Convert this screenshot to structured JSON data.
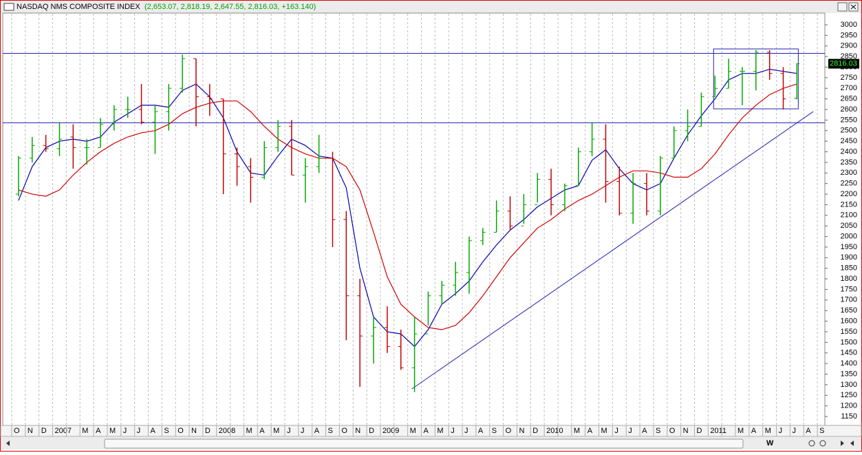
{
  "chart_data": {
    "type": "ohlc",
    "title": "NASDAQ NMS COMPOSITE INDEX",
    "subtitle": "(2,653.07, 2,818.19, 2,647.55, 2,816.03, +163.140)",
    "categories": [
      "O",
      "N",
      "D",
      "2007",
      null,
      "M",
      "A",
      "M",
      "J",
      "J",
      "A",
      "S",
      "O",
      "N",
      "D",
      "2008",
      null,
      "M",
      "A",
      "M",
      "J",
      "J",
      "A",
      "S",
      "O",
      "N",
      "D",
      "2009",
      null,
      "M",
      "A",
      "M",
      "J",
      "J",
      "A",
      "S",
      "O",
      "N",
      "D",
      "2010",
      null,
      "M",
      "A",
      "M",
      "J",
      "J",
      "A",
      "S",
      "O",
      "N",
      "D",
      "2011",
      null,
      "M",
      "A",
      "M",
      "J",
      "J",
      "A",
      "S"
    ],
    "ohlc": {
      "open": [
        2200,
        2370,
        2430,
        2415,
        2470,
        2420,
        2420,
        2530,
        2600,
        2600,
        2540,
        2590,
        2700,
        2840,
        2660,
        2650,
        2390,
        2330,
        2280,
        2420,
        2520,
        2290,
        2330,
        2370,
        2080,
        1720,
        1530,
        1570,
        1480,
        1380,
        1540,
        1720,
        1770,
        1830,
        1980,
        2020,
        2120,
        2050,
        2150,
        2270,
        2150,
        2240,
        2400,
        2460,
        2260,
        2110,
        2250,
        2120,
        2370,
        2500,
        2520,
        2660,
        2700,
        2780,
        2780,
        2870,
        2770,
        2653.07,
        null,
        null
      ],
      "high": [
        2380,
        2470,
        2480,
        2540,
        2530,
        2460,
        2560,
        2620,
        2660,
        2720,
        2620,
        2720,
        2860,
        2840,
        2720,
        2650,
        2420,
        2370,
        2450,
        2550,
        2550,
        2370,
        2480,
        2400,
        2120,
        1800,
        1620,
        1670,
        1560,
        1620,
        1740,
        1790,
        1880,
        2000,
        2040,
        2170,
        2190,
        2200,
        2300,
        2320,
        2250,
        2420,
        2540,
        2530,
        2330,
        2300,
        2300,
        2380,
        2520,
        2600,
        2680,
        2760,
        2840,
        2800,
        2880,
        2880,
        2800,
        2818.19,
        null,
        null
      ],
      "low": [
        2190,
        2350,
        2400,
        2380,
        2320,
        2340,
        2420,
        2500,
        2560,
        2530,
        2390,
        2500,
        2680,
        2520,
        2570,
        2200,
        2240,
        2160,
        2270,
        2400,
        2290,
        2160,
        2300,
        1950,
        1510,
        1290,
        1400,
        1450,
        1370,
        1265,
        1580,
        1680,
        1720,
        1730,
        1960,
        2020,
        2030,
        2060,
        2160,
        2100,
        2120,
        2240,
        2380,
        2160,
        2100,
        2060,
        2100,
        2100,
        2370,
        2450,
        2520,
        2660,
        2700,
        2620,
        2690,
        2740,
        2600,
        2647.55,
        null,
        null
      ],
      "close": [
        2370,
        2430,
        2415,
        2460,
        2420,
        2420,
        2530,
        2600,
        2600,
        2540,
        2590,
        2700,
        2840,
        2660,
        2650,
        2390,
        2330,
        2280,
        2420,
        2520,
        2290,
        2330,
        2370,
        2080,
        1720,
        1530,
        1570,
        1480,
        1380,
        1540,
        1720,
        1770,
        1830,
        1980,
        2020,
        2120,
        2050,
        2150,
        2270,
        2150,
        2240,
        2400,
        2460,
        2260,
        2110,
        2250,
        2120,
        2370,
        2500,
        2520,
        2660,
        2700,
        2780,
        2780,
        2870,
        2770,
        2650,
        2816.03,
        null,
        null
      ],
      "up_color": "#00a800",
      "down_color": "#c00000"
    },
    "series": [
      {
        "color": "#0000b0",
        "values": [
          2170,
          2330,
          2420,
          2450,
          2460,
          2450,
          2470,
          2540,
          2580,
          2620,
          2620,
          2610,
          2690,
          2720,
          2660,
          2560,
          2400,
          2300,
          2290,
          2380,
          2460,
          2430,
          2380,
          2370,
          2230,
          1850,
          1620,
          1550,
          1540,
          1480,
          1560,
          1680,
          1730,
          1790,
          1880,
          1960,
          2030,
          2080,
          2140,
          2180,
          2220,
          2240,
          2360,
          2410,
          2320,
          2250,
          2220,
          2250,
          2370,
          2480,
          2570,
          2650,
          2740,
          2770,
          2770,
          2790,
          2780,
          2770,
          null,
          null
        ]
      },
      {
        "color": "#d00000",
        "values": [
          2220,
          2200,
          2190,
          2220,
          2290,
          2350,
          2400,
          2440,
          2470,
          2490,
          2500,
          2530,
          2580,
          2610,
          2630,
          2640,
          2640,
          2590,
          2520,
          2460,
          2420,
          2390,
          2370,
          2370,
          2330,
          2220,
          2020,
          1810,
          1680,
          1620,
          1570,
          1560,
          1580,
          1640,
          1720,
          1810,
          1900,
          1970,
          2040,
          2080,
          2130,
          2170,
          2200,
          2240,
          2280,
          2310,
          2310,
          2300,
          2280,
          2280,
          2320,
          2390,
          2480,
          2560,
          2620,
          2670,
          2700,
          2720,
          null,
          null
        ]
      }
    ],
    "hlines": [
      2865,
      2537
    ],
    "trendline": {
      "x": [
        29.3,
        58.7
      ],
      "y": [
        1280,
        2590
      ]
    },
    "box": {
      "x": [
        51.4,
        57.6
      ],
      "y": [
        2603,
        2886
      ]
    },
    "last_value": 2816.03,
    "ylim": [
      1111,
      3052
    ],
    "yticks": [
      1150,
      1200,
      1250,
      1300,
      1350,
      1400,
      1450,
      1500,
      1550,
      1600,
      1650,
      1700,
      1750,
      1800,
      1850,
      1900,
      1950,
      2000,
      2050,
      2100,
      2150,
      2200,
      2250,
      2300,
      2350,
      2400,
      2450,
      2500,
      2550,
      2600,
      2650,
      2700,
      2750,
      2800,
      2850,
      2900,
      2950,
      3000
    ],
    "toolbar_label": "W"
  }
}
